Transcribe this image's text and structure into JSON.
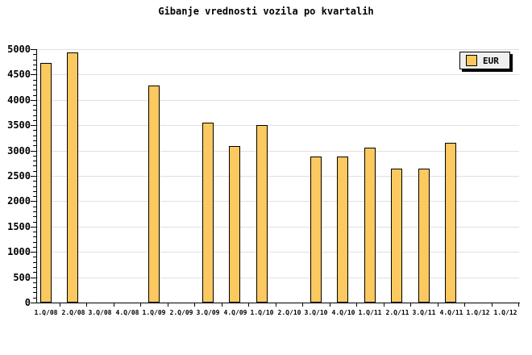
{
  "title": "Gibanje vrednosti vozila po kvartalih",
  "legend": {
    "label": "EUR",
    "position": "top-right"
  },
  "colors": {
    "background": "#FFFFFF",
    "bar_fill": "#FCC860",
    "bar_border": "#000000",
    "gridline": "#E0E0E0",
    "axis": "#000000",
    "text": "#000000",
    "legend_background": "#EFEFEF",
    "legend_shadow": "#000000"
  },
  "chart_data": {
    "type": "bar",
    "title": "Gibanje vrednosti vozila po kvartalih",
    "xlabel": "",
    "ylabel": "",
    "categories": [
      "1.Q/08",
      "2.Q/08",
      "3.Q/08",
      "4.Q/08",
      "1.Q/09",
      "2.Q/09",
      "3.Q/09",
      "4.Q/09",
      "1.Q/10",
      "2.Q/10",
      "3.Q/10",
      "4.Q/10",
      "1.Q/11",
      "2.Q/11",
      "3.Q/11",
      "4.Q/11",
      "1.Q/12",
      "1.Q/12"
    ],
    "series": [
      {
        "name": "EUR",
        "values": [
          4730,
          4940,
          null,
          null,
          4290,
          null,
          3550,
          3090,
          3500,
          null,
          2880,
          2880,
          3050,
          2640,
          2640,
          3150,
          null,
          null
        ]
      }
    ],
    "ylim": [
      0,
      5000
    ],
    "ytick_step": 500,
    "y_minor_tick_step": 100,
    "grid": "horizontal",
    "legend_position": "top-right"
  }
}
